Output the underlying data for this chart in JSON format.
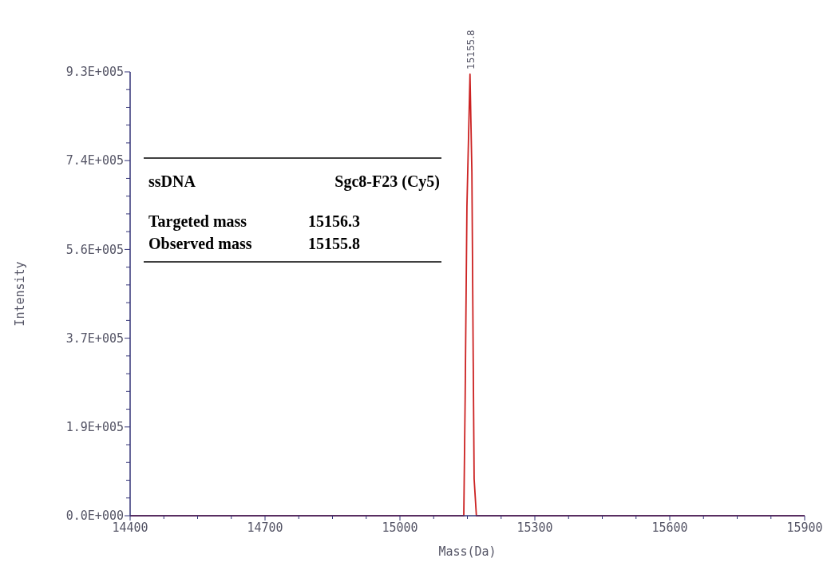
{
  "chart_data": {
    "type": "line",
    "xlabel": "Mass(Da)",
    "ylabel": "Intensity",
    "x": [
      14400,
      15142,
      15145,
      15149,
      15155.8,
      15160,
      15163,
      15165,
      15170,
      15900
    ],
    "series": [
      {
        "color": "#cc2222",
        "values": [
          0,
          0,
          244000,
          649000,
          925000,
          720000,
          321000,
          77000,
          0,
          0
        ]
      }
    ],
    "xlim": [
      14400,
      15900
    ],
    "xticks": [
      14400,
      {
        "value": 14475,
        "label": null
      },
      {
        "value": 14550,
        "label": null
      },
      {
        "value": 14625,
        "label": null
      },
      14700,
      {
        "value": 14775,
        "label": null
      },
      {
        "value": 14850,
        "label": null
      },
      {
        "value": 14925,
        "label": null
      },
      15000,
      {
        "value": 15075,
        "label": null
      },
      {
        "value": 15150,
        "label": null
      },
      {
        "value": 15225,
        "label": null
      },
      15300,
      {
        "value": 15375,
        "label": null
      },
      {
        "value": 15450,
        "label": null
      },
      {
        "value": 15525,
        "label": null
      },
      15600,
      {
        "value": 15675,
        "label": null
      },
      {
        "value": 15750,
        "label": null
      },
      {
        "value": 15825,
        "label": null
      },
      15900
    ],
    "ylim": [
      0,
      930000
    ],
    "yticks": [
      {
        "value": 0,
        "label": "0.0E+000"
      },
      {
        "value": 37200,
        "label": null
      },
      {
        "value": 74400,
        "label": null
      },
      {
        "value": 111600,
        "label": null
      },
      {
        "value": 148800,
        "label": null
      },
      {
        "value": 186000,
        "label": "1.9E+005"
      },
      {
        "value": 223200,
        "label": null
      },
      {
        "value": 260400,
        "label": null
      },
      {
        "value": 297600,
        "label": null
      },
      {
        "value": 334800,
        "label": null
      },
      {
        "value": 372000,
        "label": "3.7E+005"
      },
      {
        "value": 409200,
        "label": null
      },
      {
        "value": 446400,
        "label": null
      },
      {
        "value": 483600,
        "label": null
      },
      {
        "value": 520800,
        "label": null
      },
      {
        "value": 558000,
        "label": "5.6E+005"
      },
      {
        "value": 595200,
        "label": null
      },
      {
        "value": 632400,
        "label": null
      },
      {
        "value": 669600,
        "label": null
      },
      {
        "value": 706800,
        "label": null
      },
      {
        "value": 744000,
        "label": "7.4E+005"
      },
      {
        "value": 781200,
        "label": null
      },
      {
        "value": 818400,
        "label": null
      },
      {
        "value": 855600,
        "label": null
      },
      {
        "value": 892800,
        "label": null
      },
      {
        "value": 930000,
        "label": "9.3E+005"
      }
    ],
    "grid": false,
    "marker": "none",
    "line_style": "solid",
    "annotations": [
      {
        "text": "15155.8",
        "x": 15155.8,
        "y": 925000
      },
      "ssDNA",
      "Sgc8-F23 (Cy5)",
      "Targeted mass",
      "15156.3",
      "Observed mass",
      "15155.8"
    ]
  }
}
